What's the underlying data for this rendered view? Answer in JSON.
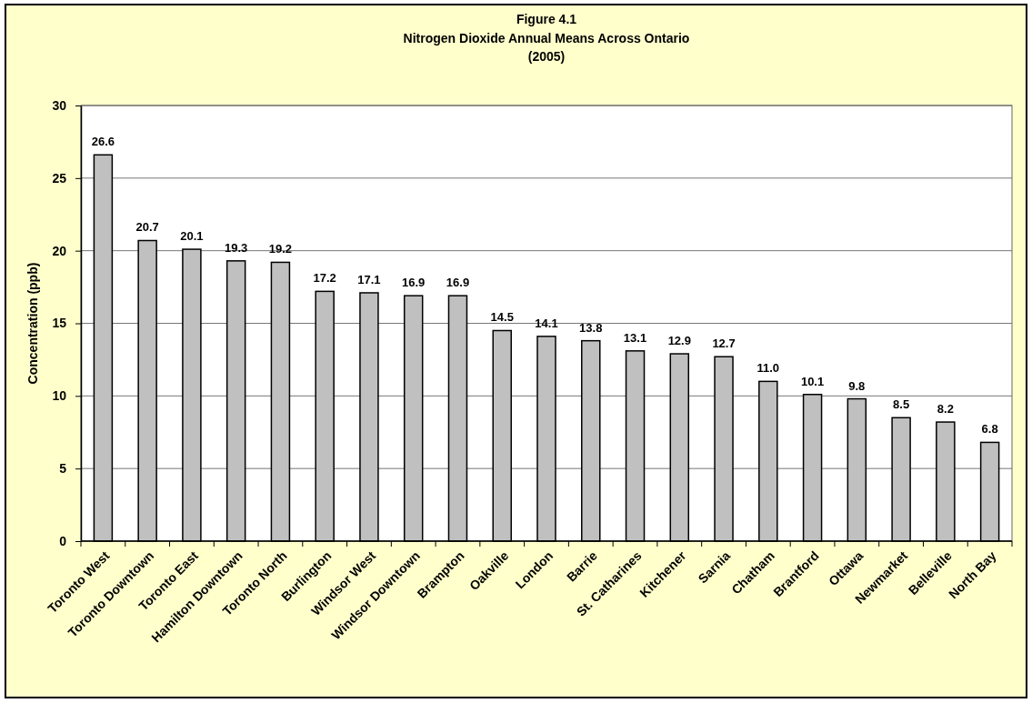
{
  "chart_data": {
    "type": "bar",
    "title": "Figure 4.1\nNitrogen Dioxide Annual Means Across Ontario\n(2005)",
    "ylabel": "Concentration (ppb)",
    "categories": [
      "Toronto West",
      "Toronto Downtown",
      "Toronto East",
      "Hamilton Downtown",
      "Toronto North",
      "Burlington",
      "Windsor West",
      "Windsor Downtown",
      "Brampton",
      "Oakville",
      "London",
      "Barrie",
      "St. Catharines",
      "Kitchener",
      "Sarnia",
      "Chatham",
      "Brantford",
      "Ottawa",
      "Newmarket",
      "Belleville",
      "North Bay"
    ],
    "values": [
      26.6,
      20.7,
      20.1,
      19.3,
      19.2,
      17.2,
      17.1,
      16.9,
      16.9,
      14.5,
      14.1,
      13.8,
      13.1,
      12.9,
      12.7,
      11.0,
      10.1,
      9.8,
      8.5,
      8.2,
      6.8
    ],
    "value_labels": [
      "26.6",
      "20.7",
      "20.1",
      "19.3",
      "19.2",
      "17.2",
      "17.1",
      "16.9",
      "16.9",
      "14.5",
      "14.1",
      "13.8",
      "13.1",
      "12.9",
      "12.7",
      "11.0",
      "10.1",
      "9.8",
      "8.5",
      "8.2",
      "6.8"
    ],
    "color": "#c0c0c0",
    "ylim": [
      0,
      30
    ],
    "yticks": [
      0,
      5,
      10,
      15,
      20,
      25,
      30
    ],
    "grid": "y"
  }
}
